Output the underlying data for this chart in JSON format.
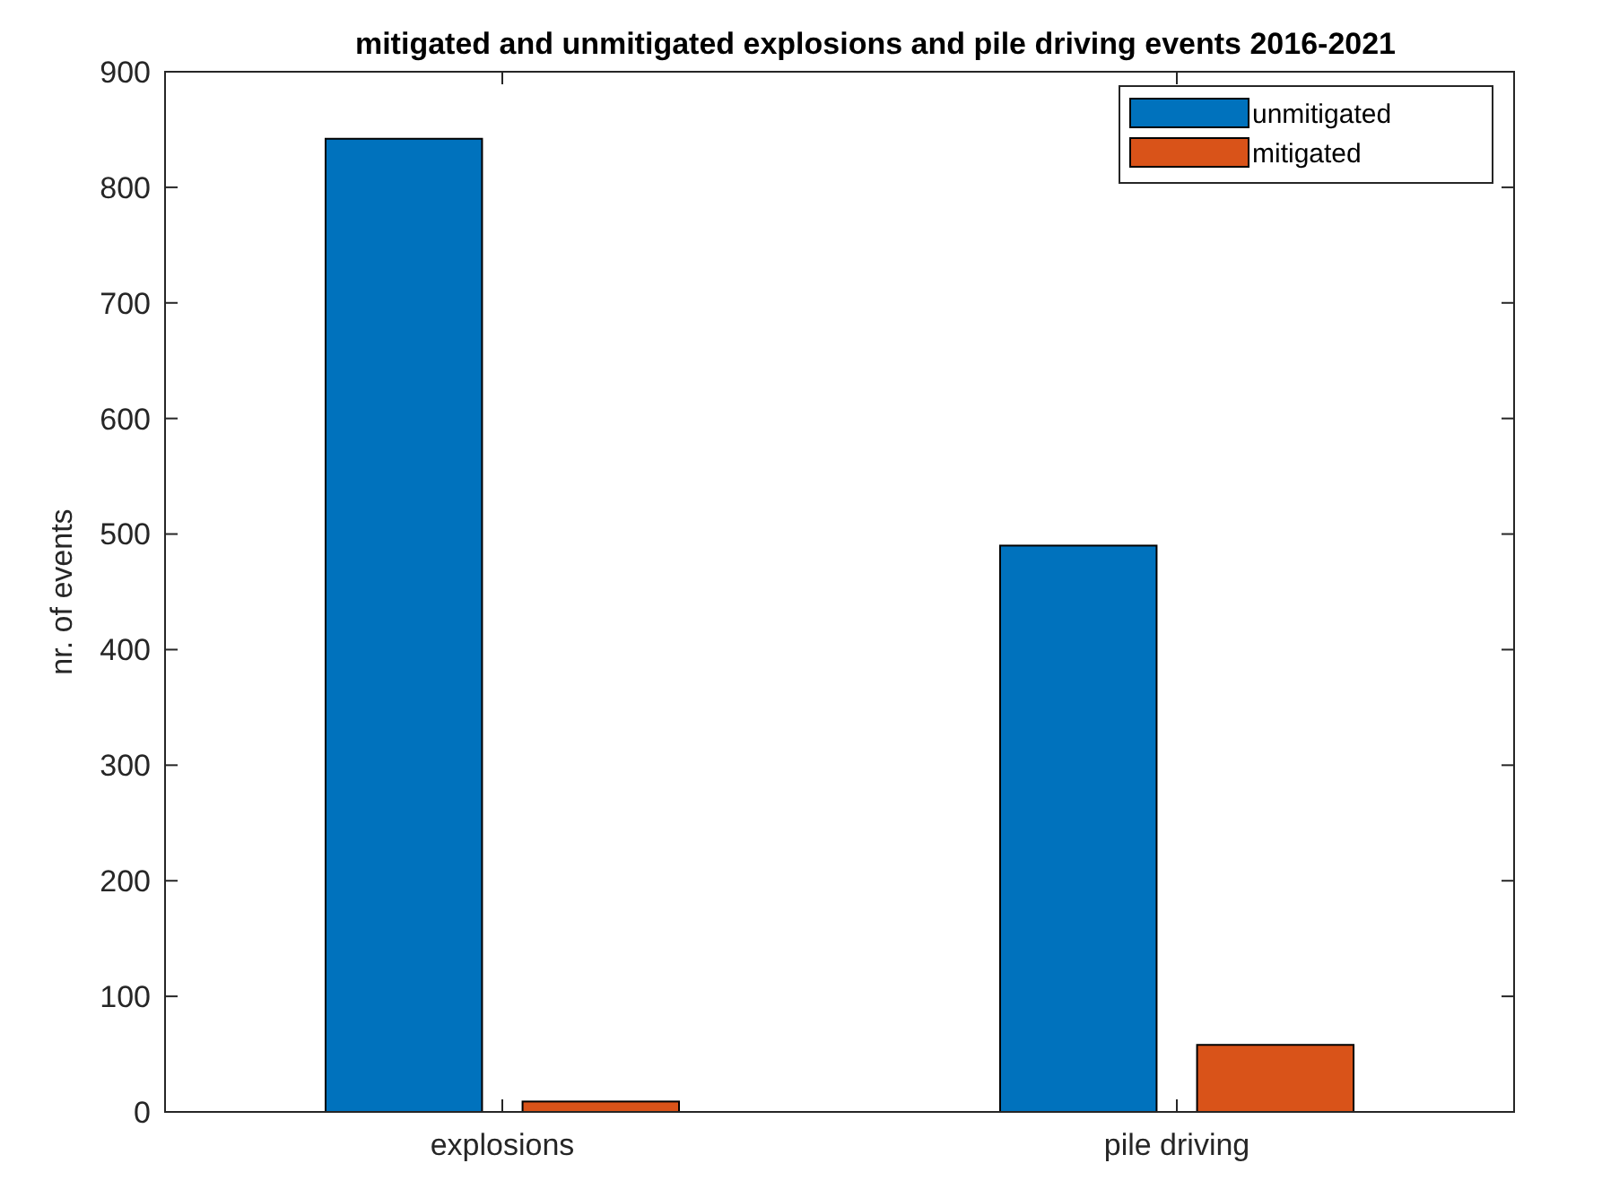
{
  "chart_data": {
    "type": "bar",
    "title": "mitigated and unmitigated explosions and pile driving events 2016-2021",
    "ylabel": "nr. of events",
    "categories": [
      "explosions",
      "pile driving"
    ],
    "series": [
      {
        "name": "unmitigated",
        "color": "#0072bd",
        "values": [
          842,
          490
        ]
      },
      {
        "name": "mitigated",
        "color": "#d95319",
        "values": [
          9,
          58
        ]
      }
    ],
    "ylim": [
      0,
      900
    ],
    "yticks": [
      0,
      100,
      200,
      300,
      400,
      500,
      600,
      700,
      800,
      900
    ],
    "grid": false,
    "legend": "top right"
  }
}
